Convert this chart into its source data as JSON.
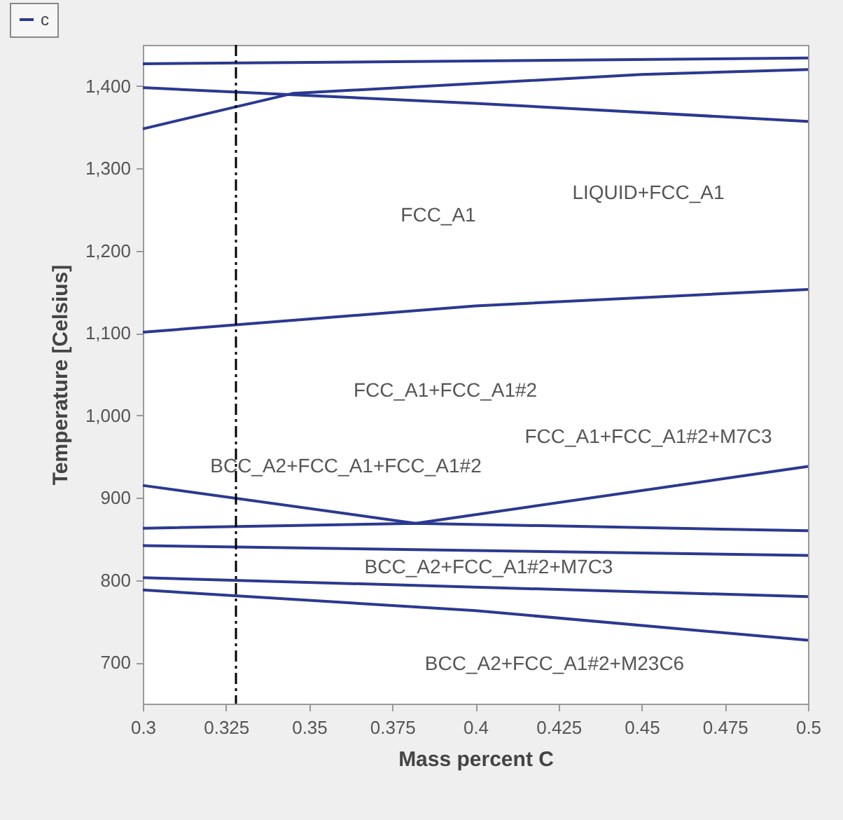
{
  "chart_data": {
    "type": "line",
    "xlabel": "Mass percent C",
    "ylabel": "Temperature [Celsius]",
    "xlim": [
      0.3,
      0.5
    ],
    "xticks": [
      0.3,
      0.325,
      0.35,
      0.375,
      0.4,
      0.425,
      0.45,
      0.475,
      0.5
    ],
    "ylim": [
      650,
      1450
    ],
    "yticks": [
      700,
      800,
      900,
      {
        "value": 1000,
        "label": "1,000"
      },
      {
        "value": 1100,
        "label": "1,100"
      },
      {
        "value": 1200,
        "label": "1,200"
      },
      {
        "value": 1300,
        "label": "1,300"
      },
      {
        "value": 1400,
        "label": "1,400"
      }
    ],
    "legend": "top left",
    "grid": false,
    "marker": "none",
    "line_style": "solid",
    "series": [
      {
        "name": "c",
        "color": "#2b3990",
        "x": [
          0.3,
          0.5
        ],
        "values": [
          1427,
          1434
        ]
      },
      {
        "color": "#2b3990",
        "x": [
          0.3,
          0.345,
          0.45,
          0.5
        ],
        "values": [
          1348,
          1391,
          1414,
          1420
        ]
      },
      {
        "color": "#2b3990",
        "x": [
          0.3,
          0.4,
          0.5
        ],
        "values": [
          1398,
          1379,
          1357
        ]
      },
      {
        "color": "#2b3990",
        "x": [
          0.3,
          0.4,
          0.5
        ],
        "values": [
          1101,
          1133,
          1153
        ]
      },
      {
        "color": "#2b3990",
        "x": [
          0.3,
          0.382,
          0.5
        ],
        "values": [
          915,
          869,
          938
        ]
      },
      {
        "color": "#2b3990",
        "x": [
          0.3,
          0.382,
          0.5
        ],
        "values": [
          863,
          869,
          860
        ]
      },
      {
        "color": "#2b3990",
        "x": [
          0.3,
          0.5
        ],
        "values": [
          842,
          830
        ]
      },
      {
        "color": "#2b3990",
        "x": [
          0.3,
          0.5
        ],
        "values": [
          803,
          780
        ]
      },
      {
        "color": "#2b3990",
        "x": [
          0.3,
          0.4,
          0.5
        ],
        "values": [
          788,
          763,
          727
        ]
      }
    ],
    "ref_lines": [
      {
        "axis": "x",
        "value": 0.328,
        "color": "#000000",
        "line_style": "dashed"
      }
    ],
    "annotations": [
      "FCC_A1",
      "LIQUID+FCC_A1",
      "FCC_A1+FCC_A1#2",
      "FCC_A1+FCC_A1#2+M7C3",
      "BCC_A2+FCC_A1+FCC_A1#2",
      "BCC_A2+FCC_A1#2+M7C3",
      "BCC_A2+FCC_A1#2+M23C6"
    ]
  }
}
